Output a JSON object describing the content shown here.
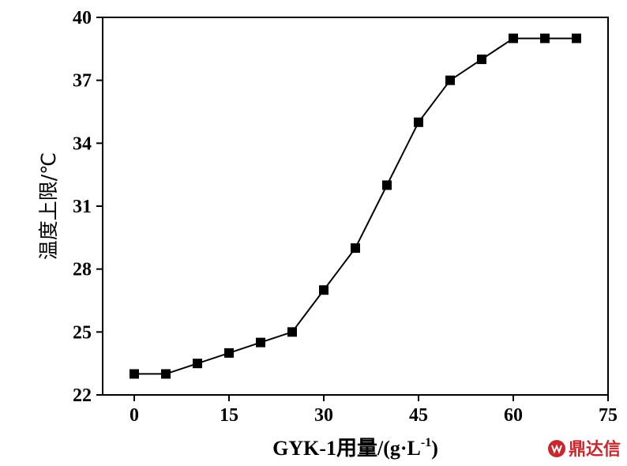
{
  "chart_data": {
    "type": "line",
    "title": "",
    "xlabel": "GYK-1用量/(g·L-1)",
    "xlabel_parts": {
      "main": "GYK-1用量/(g·L",
      "sup": "-1",
      "close": ")"
    },
    "ylabel": "温度上限/℃",
    "xlim": [
      -5,
      75
    ],
    "ylim": [
      22,
      40
    ],
    "xticks": [
      0,
      15,
      30,
      45,
      60,
      75
    ],
    "yticks": [
      22,
      25,
      28,
      31,
      34,
      37,
      40
    ],
    "grid": false,
    "legend": "none",
    "marker": "square",
    "series": [
      {
        "color": "#000000",
        "x": [
          0,
          5,
          10,
          15,
          20,
          25,
          30,
          35,
          40,
          45,
          50,
          55,
          60,
          65,
          70
        ],
        "y": [
          23,
          23,
          23.5,
          24,
          24.5,
          25,
          27,
          29,
          32,
          35,
          37,
          38,
          39,
          39,
          39
        ]
      }
    ]
  },
  "watermark": {
    "text": "鼎达信",
    "color": "#c8282d"
  }
}
